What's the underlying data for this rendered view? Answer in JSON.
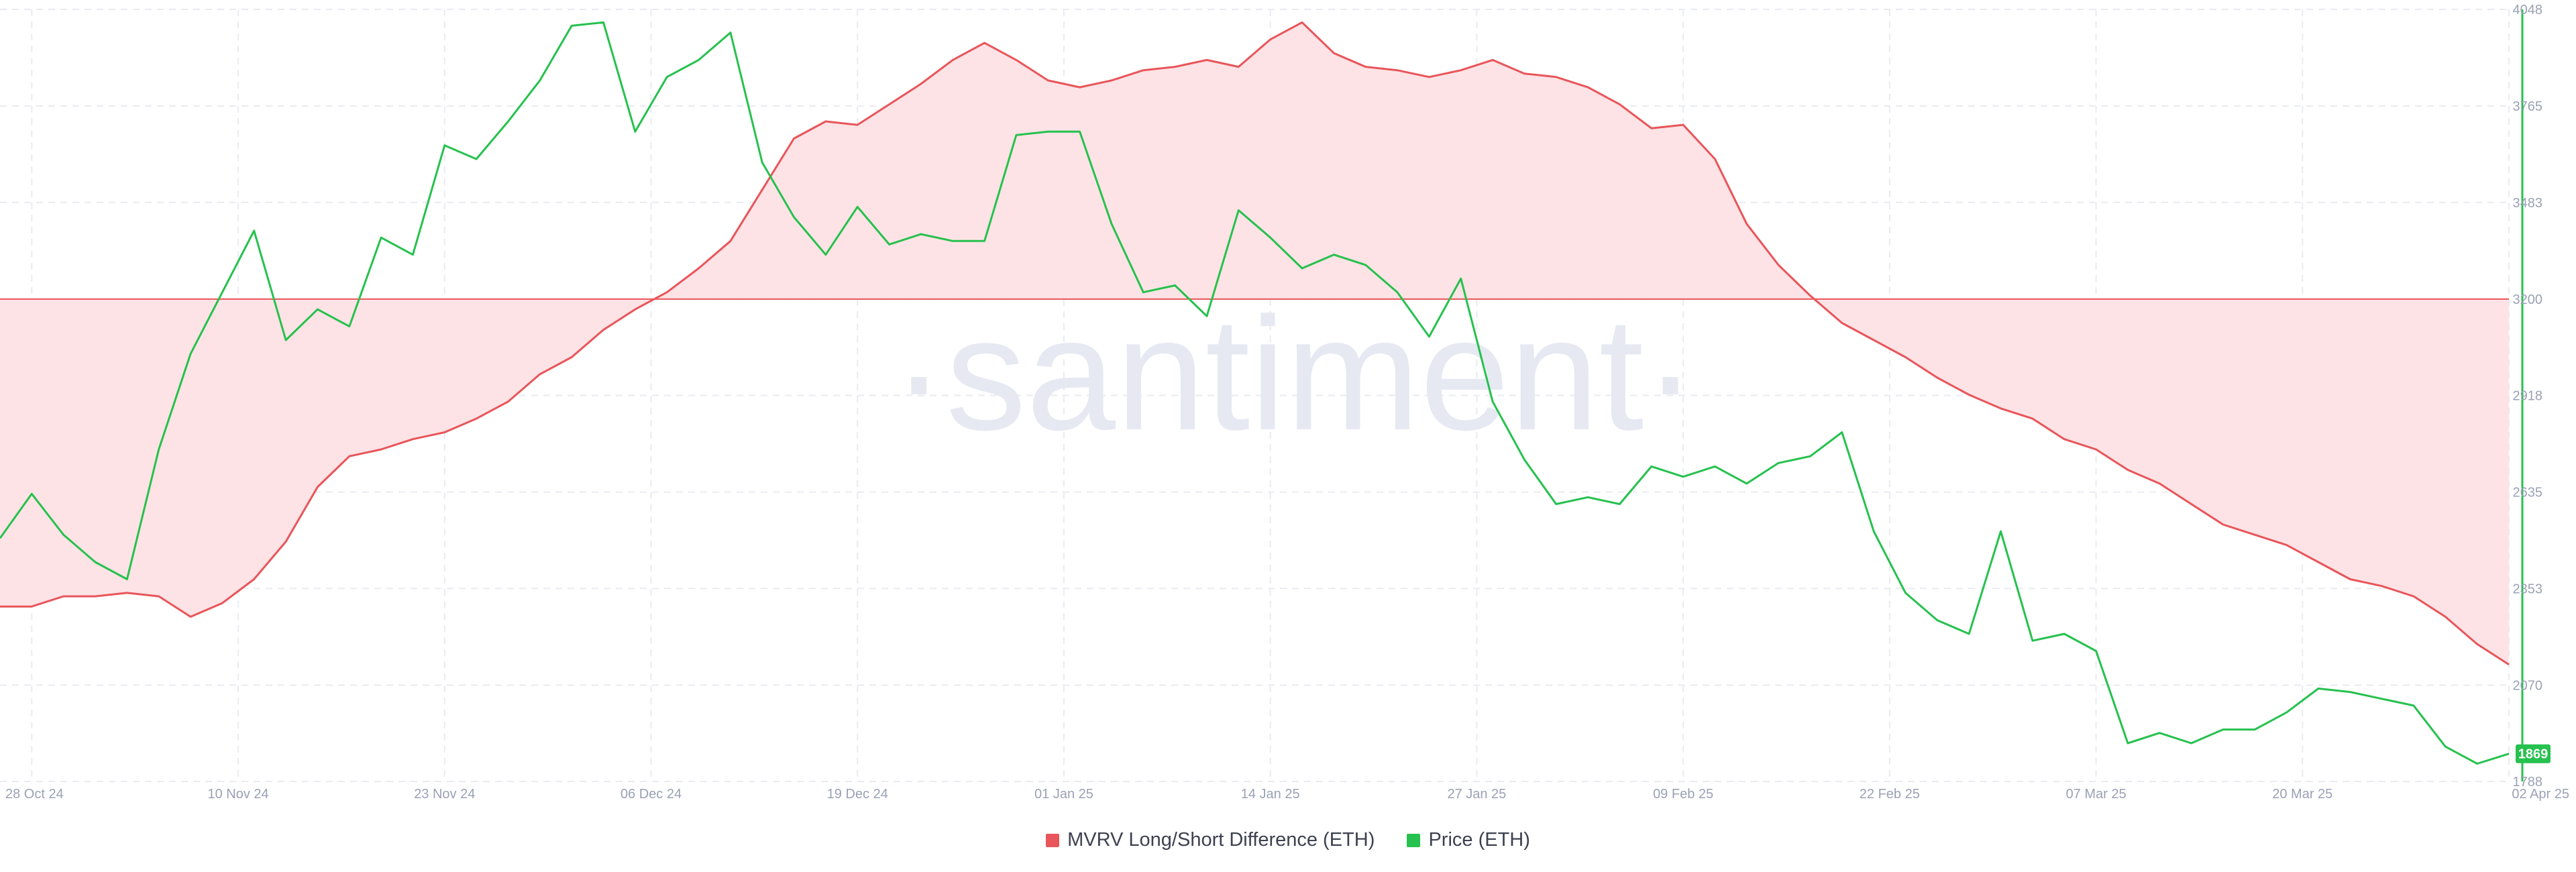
{
  "watermark": "·santiment·",
  "legend": [
    {
      "label": "MVRV Long/Short Difference (ETH)",
      "color": "#e8555a"
    },
    {
      "label": "Price (ETH)",
      "color": "#26c14e"
    }
  ],
  "price_badge": "1869",
  "chart_data": {
    "type": "line",
    "title": "",
    "x_range": [
      "2024-10-26",
      "2025-04-02"
    ],
    "x_ticks": [
      "28 Oct 24",
      "10 Nov 24",
      "23 Nov 24",
      "06 Dec 24",
      "19 Dec 24",
      "01 Jan 25",
      "14 Jan 25",
      "27 Jan 25",
      "09 Feb 25",
      "22 Feb 25",
      "07 Mar 25",
      "20 Mar 25",
      "02 Apr 25"
    ],
    "x_tick_dates": [
      "2024-10-28",
      "2024-11-10",
      "2024-11-23",
      "2024-12-06",
      "2024-12-19",
      "2025-01-01",
      "2025-01-14",
      "2025-01-27",
      "2025-02-09",
      "2025-02-22",
      "2025-03-07",
      "2025-03-20",
      "2025-04-02"
    ],
    "y_ticks": [
      "4048",
      "3765",
      "3483",
      "3200",
      "2918",
      "2635",
      "2353",
      "2070",
      "1788"
    ],
    "ylim": [
      1788,
      4048
    ],
    "mvrv_baseline_price_level": 3200,
    "grid": true,
    "legend_position": "bottom-center",
    "series": [
      {
        "name": "MVRV Long/Short Difference (ETH)",
        "color": "#e8555a",
        "fill": "#fde3e5",
        "fill_to": 3200,
        "x": [
          "2024-10-26",
          "2024-10-28",
          "2024-10-30",
          "2024-11-01",
          "2024-11-03",
          "2024-11-05",
          "2024-11-07",
          "2024-11-09",
          "2024-11-11",
          "2024-11-13",
          "2024-11-15",
          "2024-11-17",
          "2024-11-19",
          "2024-11-21",
          "2024-11-23",
          "2024-11-25",
          "2024-11-27",
          "2024-11-29",
          "2024-12-01",
          "2024-12-03",
          "2024-12-05",
          "2024-12-07",
          "2024-12-09",
          "2024-12-11",
          "2024-12-13",
          "2024-12-15",
          "2024-12-17",
          "2024-12-19",
          "2024-12-21",
          "2024-12-23",
          "2024-12-25",
          "2024-12-27",
          "2024-12-29",
          "2024-12-31",
          "2025-01-02",
          "2025-01-04",
          "2025-01-06",
          "2025-01-08",
          "2025-01-10",
          "2025-01-12",
          "2025-01-14",
          "2025-01-16",
          "2025-01-18",
          "2025-01-20",
          "2025-01-22",
          "2025-01-24",
          "2025-01-26",
          "2025-01-28",
          "2025-01-30",
          "2025-02-01",
          "2025-02-03",
          "2025-02-05",
          "2025-02-07",
          "2025-02-09",
          "2025-02-11",
          "2025-02-13",
          "2025-02-15",
          "2025-02-17",
          "2025-02-19",
          "2025-02-21",
          "2025-02-23",
          "2025-02-25",
          "2025-02-27",
          "2025-03-01",
          "2025-03-03",
          "2025-03-05",
          "2025-03-07",
          "2025-03-09",
          "2025-03-11",
          "2025-03-13",
          "2025-03-15",
          "2025-03-17",
          "2025-03-19",
          "2025-03-21",
          "2025-03-23",
          "2025-03-25",
          "2025-03-27",
          "2025-03-29",
          "2025-03-31",
          "2025-04-02"
        ],
        "values": [
          2300,
          2300,
          2330,
          2330,
          2340,
          2330,
          2270,
          2310,
          2380,
          2490,
          2650,
          2740,
          2760,
          2790,
          2810,
          2850,
          2900,
          2980,
          3030,
          3110,
          3170,
          3220,
          3290,
          3370,
          3520,
          3670,
          3720,
          3710,
          3770,
          3830,
          3900,
          3950,
          3900,
          3840,
          3820,
          3840,
          3870,
          3880,
          3900,
          3880,
          3960,
          4010,
          3920,
          3880,
          3870,
          3850,
          3870,
          3900,
          3860,
          3850,
          3820,
          3770,
          3700,
          3710,
          3610,
          3420,
          3300,
          3210,
          3130,
          3080,
          3030,
          2970,
          2920,
          2880,
          2850,
          2790,
          2760,
          2700,
          2660,
          2600,
          2540,
          2510,
          2480,
          2430,
          2380,
          2360,
          2330,
          2270,
          2190,
          2130
        ]
      },
      {
        "name": "Price (ETH)",
        "color": "#26c14e",
        "x": [
          "2024-10-26",
          "2024-10-28",
          "2024-10-30",
          "2024-11-01",
          "2024-11-03",
          "2024-11-05",
          "2024-11-07",
          "2024-11-09",
          "2024-11-11",
          "2024-11-13",
          "2024-11-15",
          "2024-11-17",
          "2024-11-19",
          "2024-11-21",
          "2024-11-23",
          "2024-11-25",
          "2024-11-27",
          "2024-11-29",
          "2024-12-01",
          "2024-12-03",
          "2024-12-05",
          "2024-12-07",
          "2024-12-09",
          "2024-12-11",
          "2024-12-13",
          "2024-12-15",
          "2024-12-17",
          "2024-12-19",
          "2024-12-21",
          "2024-12-23",
          "2024-12-25",
          "2024-12-27",
          "2024-12-29",
          "2024-12-31",
          "2025-01-02",
          "2025-01-04",
          "2025-01-06",
          "2025-01-08",
          "2025-01-10",
          "2025-01-12",
          "2025-01-14",
          "2025-01-16",
          "2025-01-18",
          "2025-01-20",
          "2025-01-22",
          "2025-01-24",
          "2025-01-26",
          "2025-01-28",
          "2025-01-30",
          "2025-02-01",
          "2025-02-03",
          "2025-02-05",
          "2025-02-07",
          "2025-02-09",
          "2025-02-11",
          "2025-02-13",
          "2025-02-15",
          "2025-02-17",
          "2025-02-19",
          "2025-02-21",
          "2025-02-23",
          "2025-02-25",
          "2025-02-27",
          "2025-03-01",
          "2025-03-03",
          "2025-03-05",
          "2025-03-07",
          "2025-03-09",
          "2025-03-11",
          "2025-03-13",
          "2025-03-15",
          "2025-03-17",
          "2025-03-19",
          "2025-03-21",
          "2025-03-23",
          "2025-03-25",
          "2025-03-27",
          "2025-03-29",
          "2025-03-31",
          "2025-04-02"
        ],
        "values": [
          2500,
          2630,
          2510,
          2430,
          2380,
          2760,
          3040,
          3220,
          3400,
          3080,
          3170,
          3120,
          3380,
          3330,
          3650,
          3610,
          3720,
          3840,
          4000,
          4010,
          3690,
          3850,
          3900,
          3980,
          3600,
          3440,
          3330,
          3470,
          3360,
          3390,
          3370,
          3370,
          3680,
          3690,
          3690,
          3420,
          3220,
          3240,
          3150,
          3460,
          3380,
          3290,
          3330,
          3300,
          3220,
          3090,
          3260,
          2900,
          2730,
          2600,
          2620,
          2600,
          2710,
          2680,
          2710,
          2660,
          2720,
          2740,
          2810,
          2520,
          2340,
          2260,
          2220,
          2520,
          2200,
          2220,
          2170,
          1900,
          1930,
          1900,
          1940,
          1940,
          1990,
          2060,
          2050,
          2030,
          2010,
          1890,
          1840,
          1869
        ]
      }
    ]
  }
}
